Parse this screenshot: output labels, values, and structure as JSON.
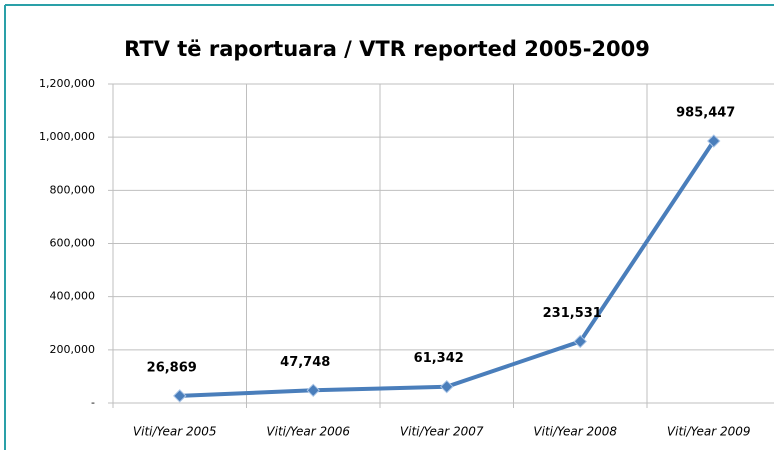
{
  "chart_data": {
    "type": "line",
    "title": "RTV të raportuara / VTR reported  2005-2009",
    "categories": [
      "Viti/Year 2005",
      "Viti/Year 2006",
      "Viti/Year 2007",
      "Viti/Year 2008",
      "Viti/Year 2009"
    ],
    "series": [
      {
        "name": "VTR reported",
        "color": "#4a7ebb",
        "values": [
          26869,
          47748,
          61342,
          231531,
          985447
        ],
        "value_labels": [
          "26,869",
          "47,748",
          "61,342",
          "231,531",
          "985,447"
        ]
      }
    ],
    "ylim": [
      0,
      1200000
    ],
    "yticks": [
      {
        "value": 0,
        "label": "-"
      },
      {
        "value": 200000,
        "label": "200,000"
      },
      {
        "value": 400000,
        "label": "400,000"
      },
      {
        "value": 600000,
        "label": "600,000"
      },
      {
        "value": 800000,
        "label": "800,000"
      },
      {
        "value": 1000000,
        "label": "1,000,000"
      },
      {
        "value": 1200000,
        "label": "1,200,000"
      }
    ],
    "grid": true
  }
}
